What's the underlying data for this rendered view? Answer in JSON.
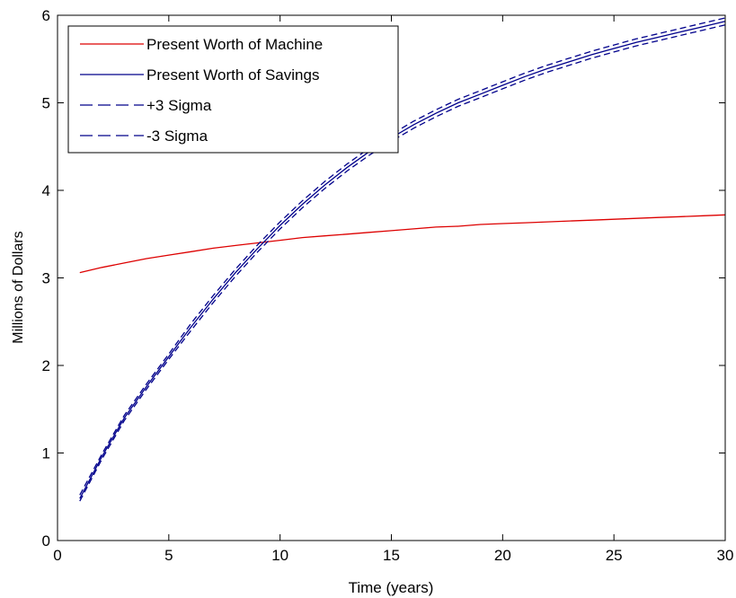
{
  "chart_data": {
    "type": "line",
    "xlabel": "Time (years)",
    "ylabel": "Millions of Dollars",
    "xlim": [
      0,
      30
    ],
    "ylim": [
      0,
      6
    ],
    "xticks": [
      0,
      5,
      10,
      15,
      20,
      25,
      30
    ],
    "yticks": [
      0,
      1,
      2,
      3,
      4,
      5,
      6
    ],
    "grid": false,
    "legend_position": "top-left",
    "x": [
      1,
      2,
      3,
      4,
      5,
      6,
      7,
      8,
      9,
      10,
      11,
      12,
      13,
      14,
      15,
      16,
      17,
      18,
      19,
      20,
      21,
      22,
      23,
      24,
      25,
      26,
      27,
      28,
      29,
      30
    ],
    "series": [
      {
        "name": "Present Worth of Machine",
        "color": "#dd0000",
        "style": "solid",
        "values": [
          3.06,
          3.12,
          3.17,
          3.22,
          3.26,
          3.3,
          3.34,
          3.37,
          3.4,
          3.43,
          3.46,
          3.48,
          3.5,
          3.52,
          3.54,
          3.56,
          3.58,
          3.59,
          3.61,
          3.62,
          3.63,
          3.64,
          3.65,
          3.66,
          3.67,
          3.68,
          3.69,
          3.7,
          3.71,
          3.72
        ]
      },
      {
        "name": "Present Worth of Savings",
        "color": "#00008b",
        "style": "solid",
        "values": [
          0.48,
          0.96,
          1.4,
          1.76,
          2.1,
          2.44,
          2.76,
          3.06,
          3.34,
          3.6,
          3.84,
          4.06,
          4.26,
          4.44,
          4.6,
          4.75,
          4.88,
          5.0,
          5.1,
          5.2,
          5.3,
          5.39,
          5.47,
          5.55,
          5.62,
          5.69,
          5.75,
          5.81,
          5.87,
          5.93
        ]
      },
      {
        "name": "+3 Sigma",
        "color": "#00008b",
        "style": "dashed",
        "values": [
          0.52,
          0.99,
          1.43,
          1.79,
          2.13,
          2.48,
          2.8,
          3.1,
          3.38,
          3.64,
          3.88,
          4.1,
          4.3,
          4.48,
          4.64,
          4.79,
          4.92,
          5.04,
          5.14,
          5.24,
          5.34,
          5.43,
          5.51,
          5.59,
          5.66,
          5.73,
          5.79,
          5.85,
          5.91,
          5.97
        ]
      },
      {
        "name": "-3 Sigma",
        "color": "#00008b",
        "style": "dashed",
        "values": [
          0.45,
          0.93,
          1.37,
          1.73,
          2.07,
          2.4,
          2.72,
          3.02,
          3.3,
          3.56,
          3.8,
          4.02,
          4.22,
          4.4,
          4.56,
          4.71,
          4.84,
          4.96,
          5.06,
          5.16,
          5.26,
          5.35,
          5.43,
          5.51,
          5.58,
          5.65,
          5.71,
          5.77,
          5.83,
          5.89
        ]
      }
    ]
  }
}
